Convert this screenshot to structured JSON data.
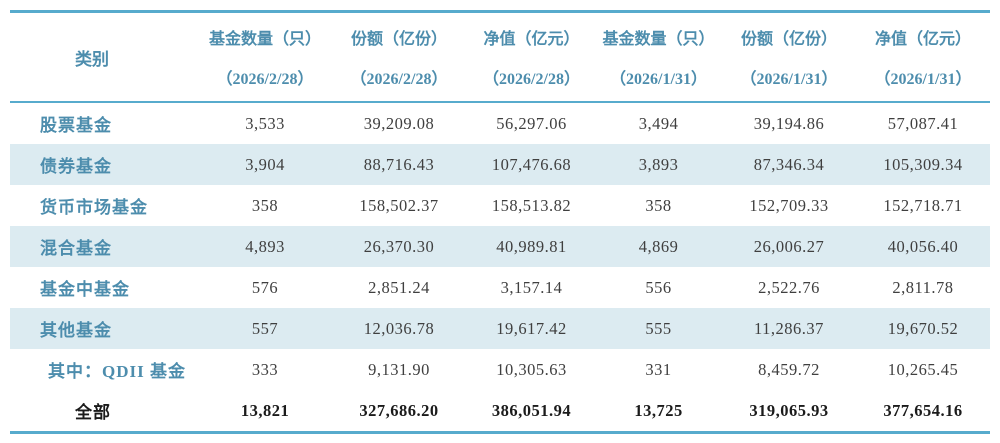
{
  "table": {
    "category_header": "类别",
    "columns": [
      {
        "label": "基金数量（只）",
        "date": "（2026/2/28）"
      },
      {
        "label": "份额（亿份）",
        "date": "（2026/2/28）"
      },
      {
        "label": "净值（亿元）",
        "date": "（2026/2/28）"
      },
      {
        "label": "基金数量（只）",
        "date": "（2026/1/31）"
      },
      {
        "label": "份额（亿份）",
        "date": "（2026/1/31）"
      },
      {
        "label": "净值（亿元）",
        "date": "（2026/1/31）"
      }
    ],
    "rows": [
      {
        "category": "股票基金",
        "values": [
          "3,533",
          "39,209.08",
          "56,297.06",
          "3,494",
          "39,194.86",
          "57,087.41"
        ]
      },
      {
        "category": "债券基金",
        "values": [
          "3,904",
          "88,716.43",
          "107,476.68",
          "3,893",
          "87,346.34",
          "105,309.34"
        ]
      },
      {
        "category": "货币市场基金",
        "values": [
          "358",
          "158,502.37",
          "158,513.82",
          "358",
          "152,709.33",
          "152,718.71"
        ]
      },
      {
        "category": "混合基金",
        "values": [
          "4,893",
          "26,370.30",
          "40,989.81",
          "4,869",
          "26,006.27",
          "40,056.40"
        ]
      },
      {
        "category": "基金中基金",
        "values": [
          "576",
          "2,851.24",
          "3,157.14",
          "556",
          "2,522.76",
          "2,811.78"
        ]
      },
      {
        "category": "其他基金",
        "values": [
          "557",
          "12,036.78",
          "19,617.42",
          "555",
          "11,286.37",
          "19,670.52"
        ]
      },
      {
        "category": "其中：QDII 基金",
        "values": [
          "333",
          "9,131.90",
          "10,305.63",
          "331",
          "8,459.72",
          "10,265.45"
        ]
      },
      {
        "category": "全部",
        "values": [
          "13,821",
          "327,686.20",
          "386,051.94",
          "13,725",
          "319,065.93",
          "377,654.16"
        ]
      }
    ]
  },
  "colors": {
    "accent_line": "#57abcd",
    "header_text": "#4d8dad",
    "row_shade": "#dcebf1",
    "body_text": "#3f3f3f",
    "total_text": "#1b1b1b"
  }
}
